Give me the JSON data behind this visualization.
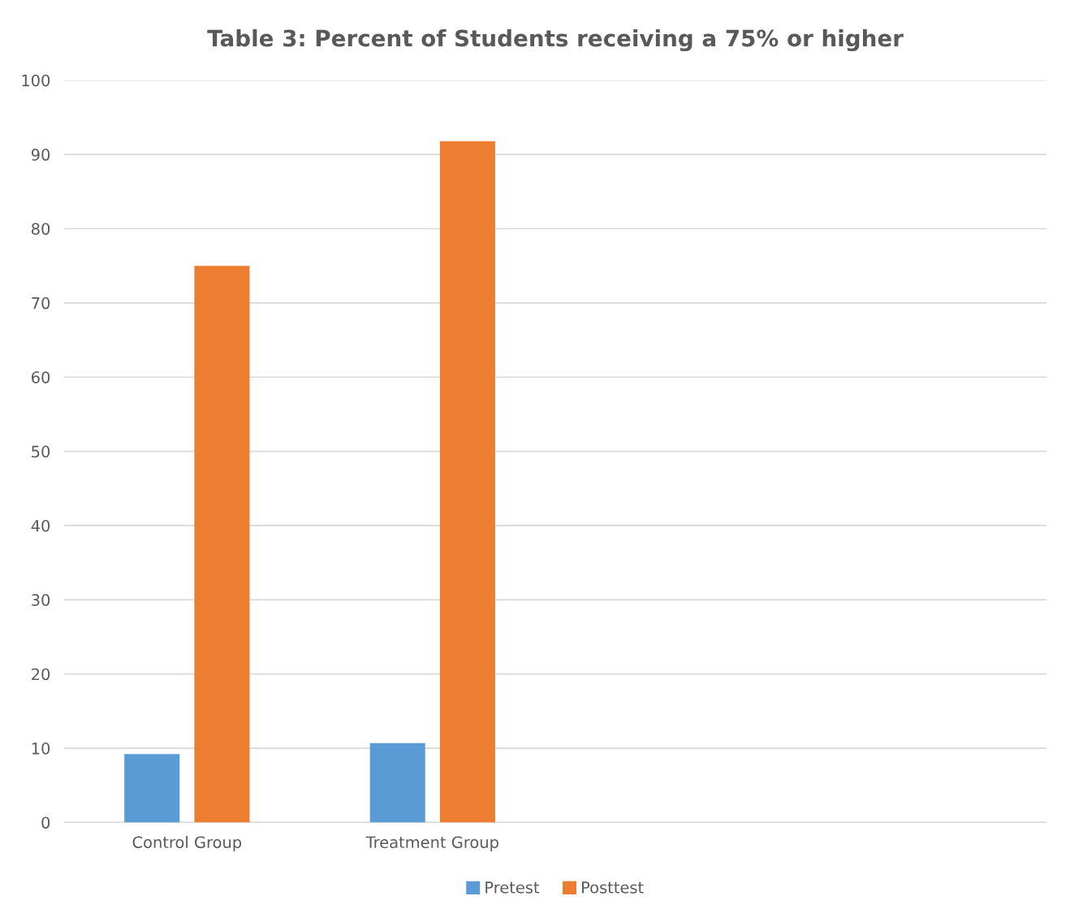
{
  "chart_data": {
    "type": "bar",
    "title": "Table 3: Percent of Students receiving a 75% or higher",
    "categories": [
      "Control Group",
      "Treatment Group",
      null,
      null
    ],
    "series": [
      {
        "name": "Pretest",
        "color": "#5b9bd5",
        "values": [
          9.2,
          10.7,
          null,
          null
        ]
      },
      {
        "name": "Posttest",
        "color": "#ed7d31",
        "values": [
          75,
          91.8,
          null,
          null
        ]
      }
    ],
    "ylim": [
      0,
      100
    ],
    "yticks": [
      0,
      10,
      20,
      30,
      40,
      50,
      60,
      70,
      80,
      90,
      100
    ],
    "grid": "y",
    "legend": "bottom"
  }
}
